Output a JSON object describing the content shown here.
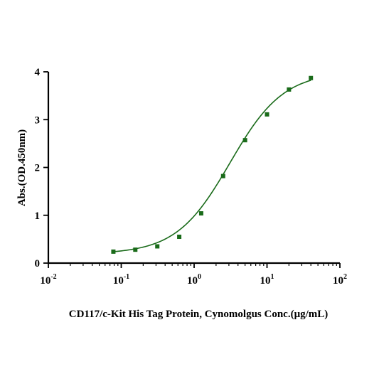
{
  "chart_data": {
    "type": "scatter",
    "xlabel": "CD117/c-Kit His Tag Protein, Cynomolgus Conc.(μg/mL)",
    "ylabel": "Abs.(OD.450nm)",
    "x_scale": "log",
    "xlim": [
      0.01,
      100
    ],
    "ylim": [
      0,
      4
    ],
    "x_ticks": [
      {
        "base": "10",
        "exp": "-2",
        "value": 0.01
      },
      {
        "base": "10",
        "exp": "-1",
        "value": 0.1
      },
      {
        "base": "10",
        "exp": "0",
        "value": 1
      },
      {
        "base": "10",
        "exp": "1",
        "value": 10
      },
      {
        "base": "10",
        "exp": "2",
        "value": 100
      }
    ],
    "y_ticks": [
      "0",
      "1",
      "2",
      "3",
      "4"
    ],
    "grid": false,
    "series": [
      {
        "color": "#1a6b1a",
        "marker": "square",
        "fit": "sigmoidal",
        "points": [
          {
            "x": 0.078,
            "y": 0.24
          },
          {
            "x": 0.156,
            "y": 0.28
          },
          {
            "x": 0.3125,
            "y": 0.35
          },
          {
            "x": 0.625,
            "y": 0.55
          },
          {
            "x": 1.25,
            "y": 1.04
          },
          {
            "x": 2.5,
            "y": 1.82
          },
          {
            "x": 5,
            "y": 2.57
          },
          {
            "x": 10,
            "y": 3.11
          },
          {
            "x": 20,
            "y": 3.63
          },
          {
            "x": 40,
            "y": 3.87
          }
        ]
      }
    ]
  }
}
